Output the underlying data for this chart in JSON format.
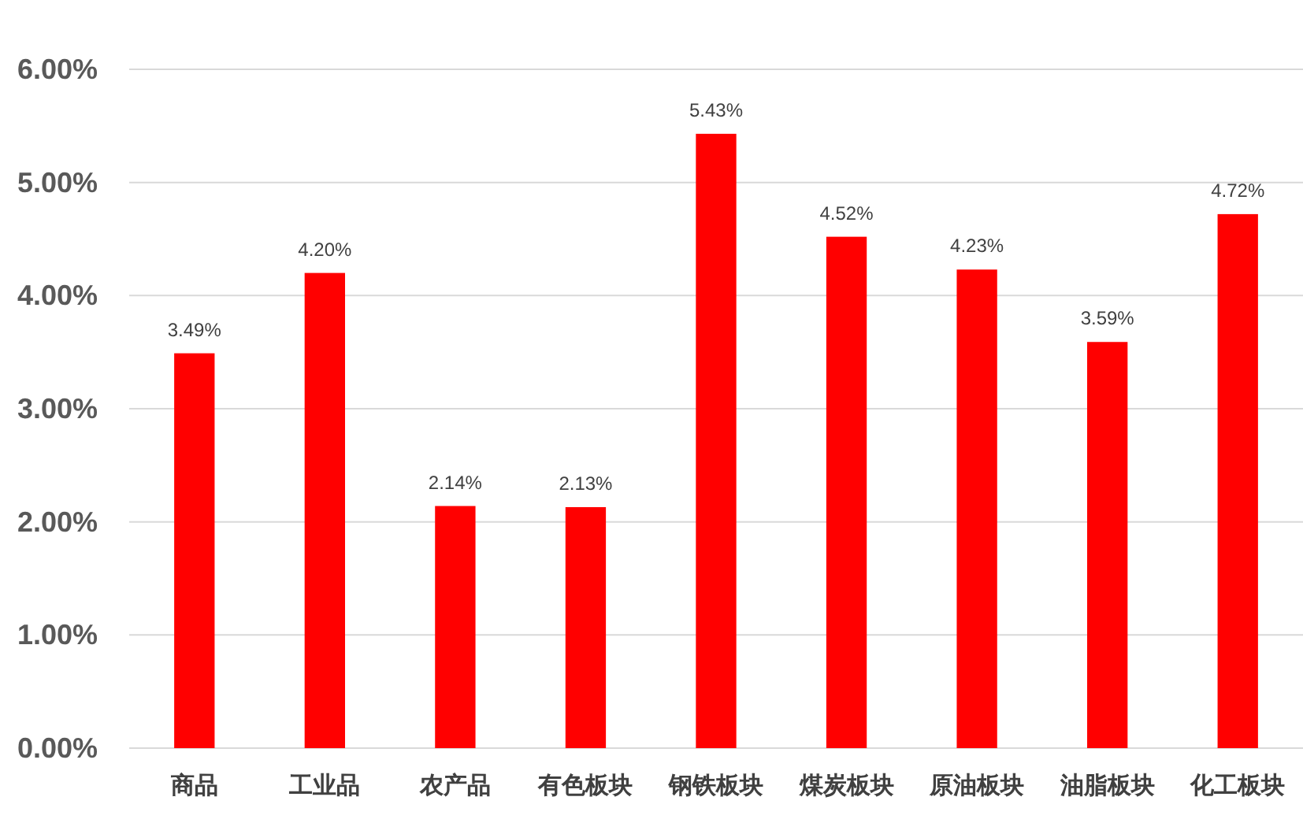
{
  "chart_data": {
    "type": "bar",
    "categories": [
      "商品",
      "工业品",
      "农产品",
      "有色板块",
      "钢铁板块",
      "煤炭板块",
      "原油板块",
      "油脂板块",
      "化工板块"
    ],
    "values": [
      3.49,
      4.2,
      2.14,
      2.13,
      5.43,
      4.52,
      4.23,
      3.59,
      4.72
    ],
    "value_labels": [
      "3.49%",
      "4.20%",
      "2.14%",
      "2.13%",
      "5.43%",
      "4.52%",
      "4.23%",
      "3.59%",
      "4.72%"
    ],
    "color": "#ff0000",
    "ylim": [
      0,
      6
    ],
    "yticks": [
      {
        "value": 0,
        "label": "0.00%"
      },
      {
        "value": 1,
        "label": "1.00%"
      },
      {
        "value": 2,
        "label": "2.00%"
      },
      {
        "value": 3,
        "label": "3.00%"
      },
      {
        "value": 4,
        "label": "4.00%"
      },
      {
        "value": 5,
        "label": "5.00%"
      },
      {
        "value": 6,
        "label": "6.00%"
      }
    ],
    "grid": "y"
  }
}
